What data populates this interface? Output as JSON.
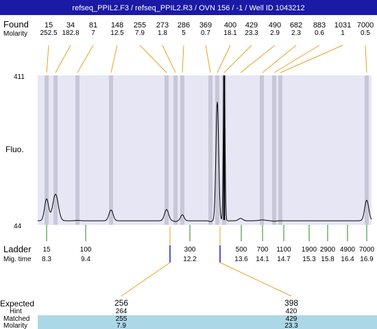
{
  "title": "refseq_PPIL2.F3 / refseq_PPIL2.R3 / OVN 156 / -1 / Well ID 1043212",
  "labels": {
    "found": "Found",
    "molarity": "Molarity",
    "fluo": "Fluo.",
    "ladder": "Ladder",
    "mig_time": "Mig. time",
    "expected": "Expected",
    "hint": "Hint",
    "matched": "Matched",
    "molarity_bottom": "Molarity",
    "y_top": "411",
    "y_bottom": "44"
  },
  "colors": {
    "title_bg": "#1a1aa6",
    "plot_bg": "#e6e6f5",
    "band": "#c7c7d8",
    "connector": "#e8a020",
    "ladder_tick": "#1f8a1f",
    "expected_tick": "#1c1cbf",
    "matched_row_bg": "#acd7e6"
  },
  "found": [
    {
      "size": "15",
      "molarity": "252.5"
    },
    {
      "size": "34",
      "molarity": "182.8"
    },
    {
      "size": "81",
      "molarity": "7"
    },
    {
      "size": "148",
      "molarity": "12.5"
    },
    {
      "size": "255",
      "molarity": "7.9"
    },
    {
      "size": "273",
      "molarity": "1.8"
    },
    {
      "size": "286",
      "molarity": "5"
    },
    {
      "size": "369",
      "molarity": "0.7"
    },
    {
      "size": "400",
      "molarity": "18.1"
    },
    {
      "size": "429",
      "molarity": "23.3"
    },
    {
      "size": "490",
      "molarity": "2.9"
    },
    {
      "size": "682",
      "molarity": "2.3"
    },
    {
      "size": "883",
      "molarity": "0.6"
    },
    {
      "size": "1031",
      "molarity": "1"
    },
    {
      "size": "7000",
      "molarity": "0.5"
    }
  ],
  "ladder": [
    {
      "size": "15",
      "time": "8.3"
    },
    {
      "size": "100",
      "time": "9.4"
    },
    {
      "size": "300",
      "time": "12.2"
    },
    {
      "size": "500",
      "time": "13.6"
    },
    {
      "size": "700",
      "time": "14.1"
    },
    {
      "size": "1100",
      "time": "14.7"
    },
    {
      "size": "1900",
      "time": "15.3"
    },
    {
      "size": "2900",
      "time": "15.8"
    },
    {
      "size": "4900",
      "time": "16.4"
    },
    {
      "size": "7000",
      "time": "16.9"
    }
  ],
  "expected": [
    {
      "size": "256",
      "hint": "264",
      "matched": "255",
      "molarity": "7.9"
    },
    {
      "size": "398",
      "hint": "420",
      "matched": "429",
      "molarity": "23.3"
    }
  ],
  "chart_data": {
    "type": "line",
    "x_axis": "migration time",
    "y_axis": "fluorescence",
    "ylim": [
      44,
      411
    ],
    "peaks": [
      {
        "found_size": 15,
        "height": 103
      },
      {
        "found_size": 34,
        "height": 115
      },
      {
        "found_size": 81,
        "height": 50
      },
      {
        "found_size": 148,
        "height": 76
      },
      {
        "found_size": 255,
        "height": 77
      },
      {
        "found_size": 273,
        "height": 47
      },
      {
        "found_size": 286,
        "height": 64
      },
      {
        "found_size": 369,
        "height": 47
      },
      {
        "found_size": 400,
        "height": 345
      },
      {
        "found_size": 429,
        "height": 411
      },
      {
        "found_size": 490,
        "height": 55
      },
      {
        "found_size": 682,
        "height": 51
      },
      {
        "found_size": 883,
        "height": 48
      },
      {
        "found_size": 1031,
        "height": 49
      },
      {
        "found_size": 7000,
        "height": 100
      }
    ]
  }
}
